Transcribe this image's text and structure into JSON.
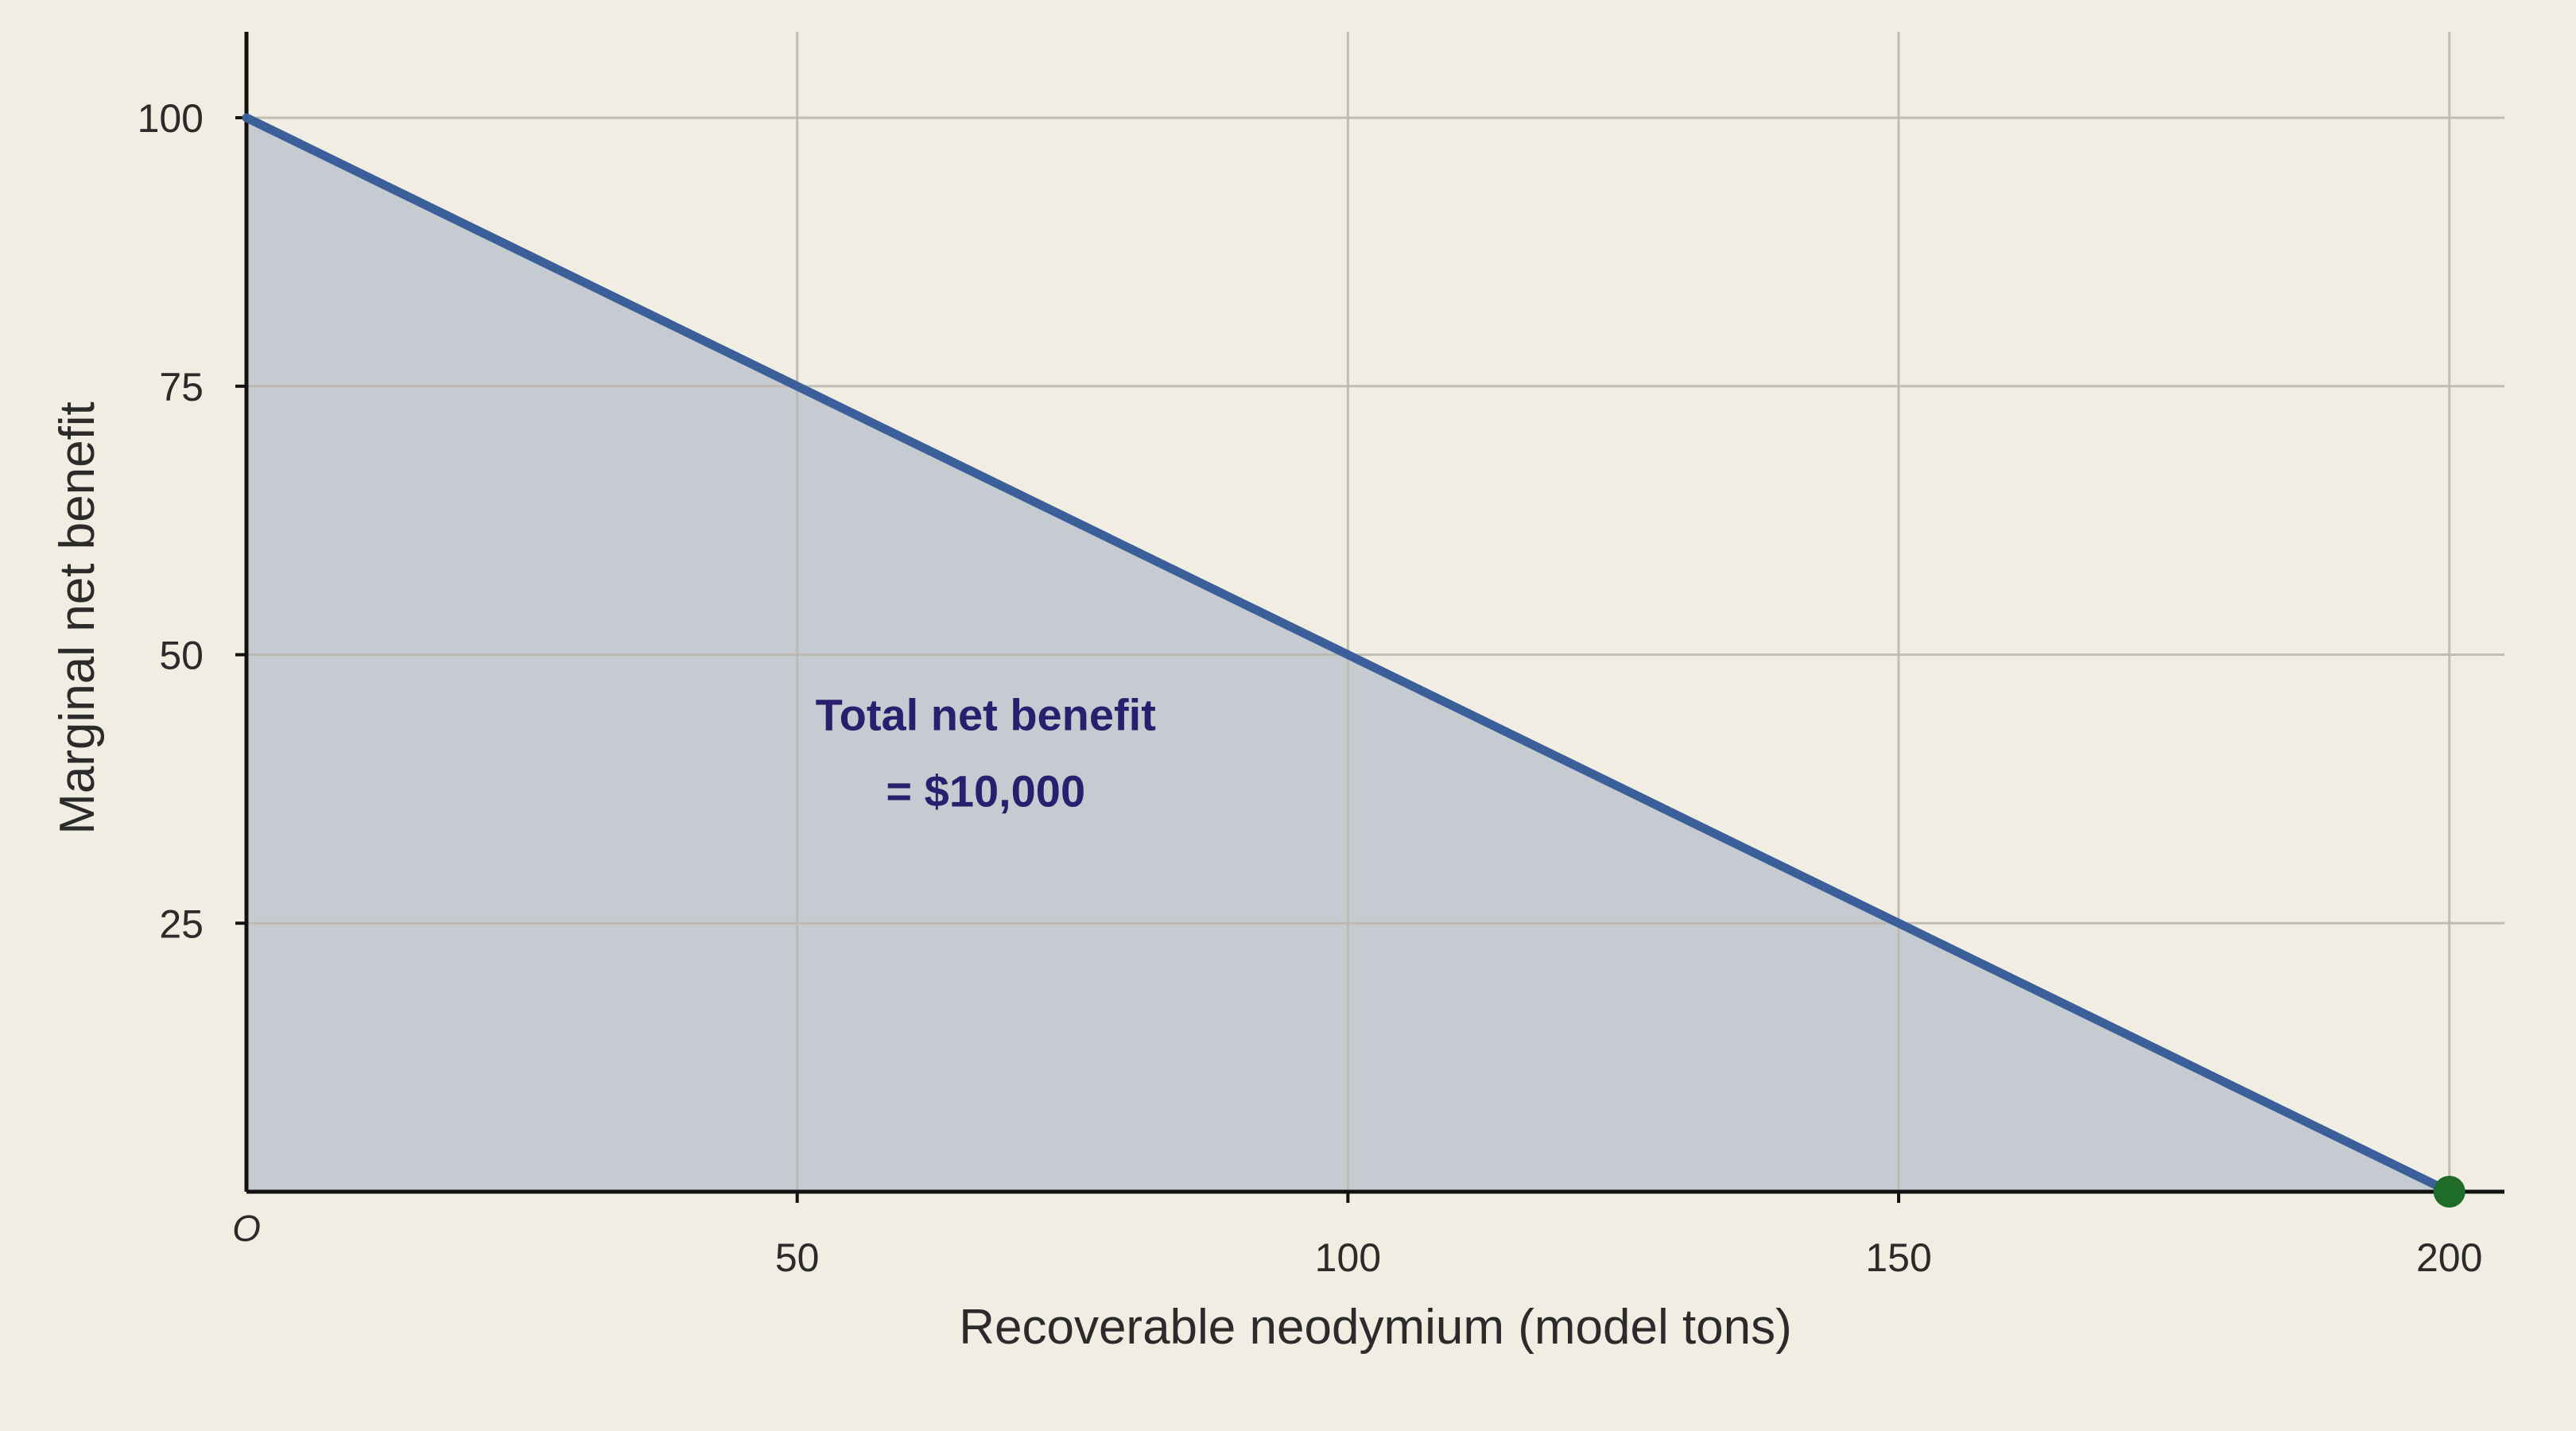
{
  "chart_data": {
    "type": "area",
    "x": [
      0,
      200
    ],
    "series": [
      {
        "values": [
          100,
          0
        ]
      }
    ],
    "xlabel": "Recoverable neodymium (model tons)",
    "ylabel": "Marginal net benefit",
    "xlim": [
      0,
      205
    ],
    "ylim": [
      0,
      108
    ],
    "xticks": [
      50,
      100,
      150,
      200
    ],
    "xtick_labels": [
      "50",
      "100",
      "150",
      "200"
    ],
    "yticks": [
      25,
      50,
      75,
      100
    ],
    "ytick_labels": [
      "25",
      "50",
      "75",
      "100"
    ],
    "origin_label": "O",
    "grid": true,
    "annotation": {
      "lines": [
        "Total net benefit",
        "= $10,000"
      ],
      "x": 70,
      "y": 40
    },
    "marker": {
      "x": 200,
      "y": 0
    },
    "colors": {
      "background": "#f1ede2",
      "line": "#3a5f99",
      "fill": "#c5cbd0",
      "grid": "#bdb8ae",
      "marker": "#1f6b2a",
      "annotation": "#2a1f6e",
      "axis": "#111111"
    }
  }
}
